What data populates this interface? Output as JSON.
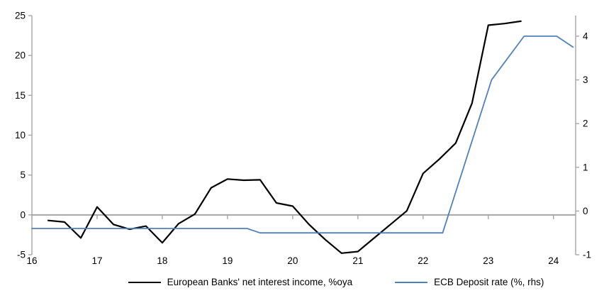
{
  "chart_data": {
    "type": "line",
    "title": "",
    "legend_position": "bottom",
    "axis_color": "#A6A6A6",
    "background": "#ffffff",
    "x_axis": {
      "range": [
        16,
        24.34
      ],
      "ticks": [
        16,
        17,
        18,
        19,
        20,
        21,
        22,
        23,
        24
      ]
    },
    "left_axis": {
      "range": [
        -5,
        25
      ],
      "ticks": [
        25,
        20,
        15,
        10,
        5,
        0,
        -5
      ]
    },
    "right_axis": {
      "range": [
        -1,
        4.47
      ],
      "ticks": [
        4,
        3,
        2,
        1,
        0,
        -1
      ]
    },
    "grid": "zero-line-only",
    "series": [
      {
        "name": "European Banks' net interest income, %oya",
        "axis": "left",
        "color": "#000000",
        "stroke_width": 2.2,
        "x": [
          16.25,
          16.5,
          16.75,
          17.0,
          17.25,
          17.5,
          17.75,
          18.0,
          18.25,
          18.5,
          18.75,
          19.0,
          19.25,
          19.5,
          19.75,
          20.0,
          20.25,
          20.5,
          20.75,
          21.0,
          21.25,
          21.5,
          21.75,
          22.0,
          22.25,
          22.5,
          22.75,
          23.0,
          23.25,
          23.5
        ],
        "y": [
          -0.7,
          -0.9,
          -2.9,
          1.0,
          -1.2,
          -1.8,
          -1.4,
          -3.5,
          -1.1,
          0.1,
          3.4,
          4.5,
          4.35,
          4.4,
          1.5,
          1.1,
          -1.2,
          -3.1,
          -4.8,
          -4.6,
          -2.9,
          -1.2,
          0.5,
          5.2,
          7.0,
          9.0,
          14.0,
          23.8,
          24.0,
          24.3
        ]
      },
      {
        "name": "ECB Deposit rate (%, rhs)",
        "axis": "right",
        "color": "#4E81BD",
        "stroke_width": 1.8,
        "x": [
          16.0,
          19.3,
          19.5,
          22.3,
          23.05,
          23.55,
          24.05,
          24.3
        ],
        "y": [
          -0.4,
          -0.4,
          -0.5,
          -0.5,
          3.0,
          4.0,
          4.0,
          3.75
        ]
      }
    ]
  }
}
